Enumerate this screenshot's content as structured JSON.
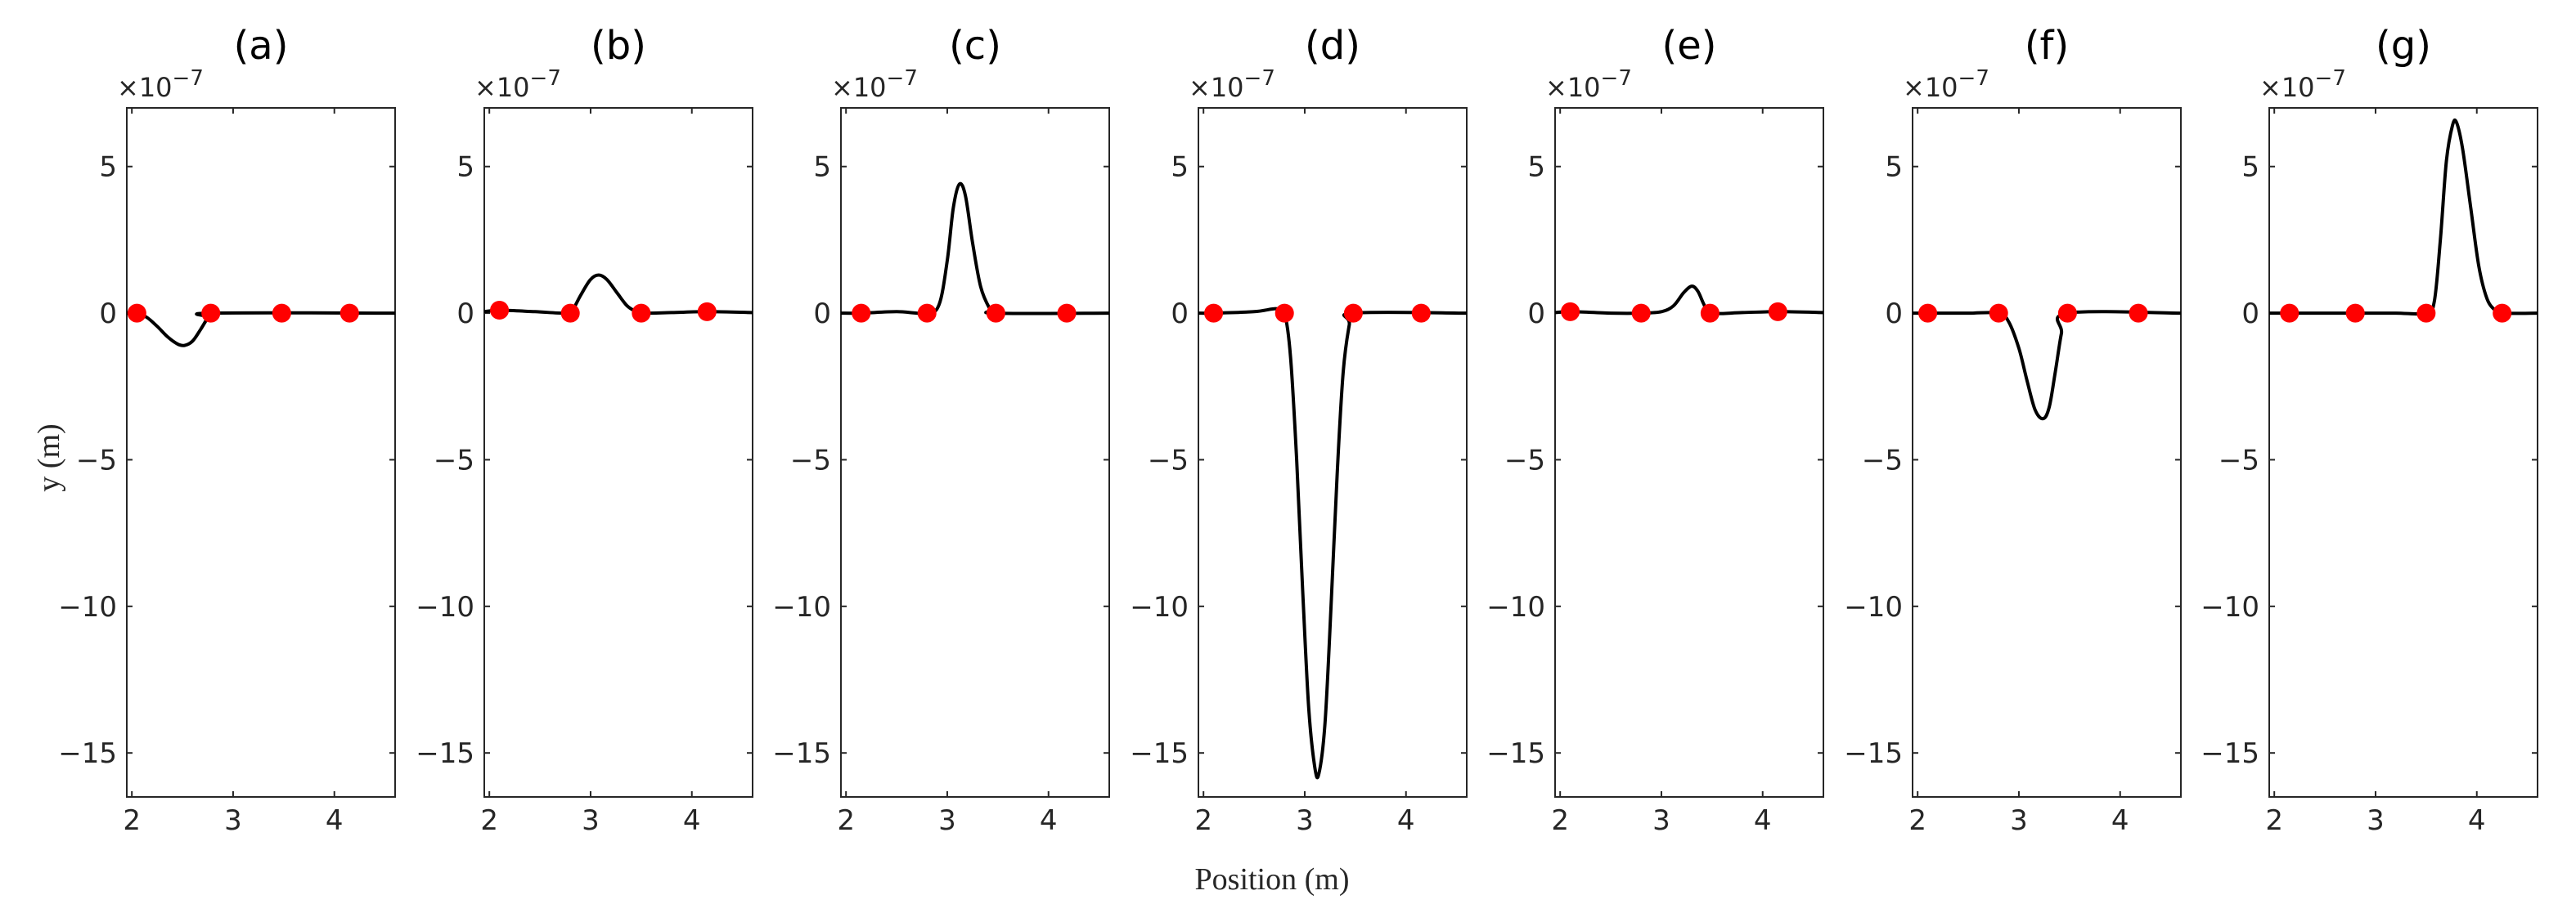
{
  "chart_data": {
    "type": "line",
    "xlabel": "Position (m)",
    "ylabel": "y (m)",
    "y_scale_label": "×10",
    "y_scale_exponent": "−7",
    "xlim": [
      1.95,
      4.6
    ],
    "ylim": [
      -16.5,
      7
    ],
    "x_ticks": [
      2,
      3,
      4
    ],
    "x_tick_labels": [
      "2",
      "3",
      "4"
    ],
    "y_ticks": [
      5,
      0,
      -5,
      -10,
      -15
    ],
    "y_tick_labels": [
      "5",
      "0",
      "−5",
      "−10",
      "−15"
    ],
    "marker_color": "#ff0000",
    "line_color": "#000000",
    "panels": [
      {
        "title": "(a)",
        "markers": [
          {
            "x": 2.05,
            "y": 0
          },
          {
            "x": 2.78,
            "y": 0
          },
          {
            "x": 3.48,
            "y": 0
          },
          {
            "x": 4.15,
            "y": 0
          }
        ],
        "curve": [
          [
            1.95,
            0
          ],
          [
            2.05,
            0
          ],
          [
            2.15,
            -0.15
          ],
          [
            2.25,
            -0.45
          ],
          [
            2.35,
            -0.8
          ],
          [
            2.45,
            -1.05
          ],
          [
            2.52,
            -1.1
          ],
          [
            2.6,
            -0.95
          ],
          [
            2.68,
            -0.55
          ],
          [
            2.75,
            -0.15
          ],
          [
            2.78,
            0
          ],
          [
            4.6,
            0
          ]
        ]
      },
      {
        "title": "(b)",
        "markers": [
          {
            "x": 2.1,
            "y": 0.1
          },
          {
            "x": 2.8,
            "y": 0
          },
          {
            "x": 3.5,
            "y": 0
          },
          {
            "x": 4.15,
            "y": 0.05
          }
        ],
        "curve": [
          [
            1.95,
            0.05
          ],
          [
            2.1,
            0.1
          ],
          [
            2.45,
            0.05
          ],
          [
            2.75,
            0
          ],
          [
            2.82,
            0.1
          ],
          [
            2.9,
            0.6
          ],
          [
            3.0,
            1.15
          ],
          [
            3.08,
            1.3
          ],
          [
            3.16,
            1.15
          ],
          [
            3.26,
            0.7
          ],
          [
            3.36,
            0.25
          ],
          [
            3.45,
            0.05
          ],
          [
            3.5,
            0
          ],
          [
            3.8,
            0.02
          ],
          [
            4.15,
            0.05
          ],
          [
            4.6,
            0.02
          ]
        ]
      },
      {
        "title": "(c)",
        "markers": [
          {
            "x": 2.15,
            "y": 0
          },
          {
            "x": 2.8,
            "y": 0
          },
          {
            "x": 3.48,
            "y": 0
          },
          {
            "x": 4.18,
            "y": 0
          }
        ],
        "curve": [
          [
            1.95,
            0
          ],
          [
            2.15,
            0
          ],
          [
            2.5,
            0.05
          ],
          [
            2.8,
            0
          ],
          [
            2.92,
            0.3
          ],
          [
            3.0,
            1.8
          ],
          [
            3.06,
            3.6
          ],
          [
            3.12,
            4.4
          ],
          [
            3.18,
            4.0
          ],
          [
            3.25,
            2.4
          ],
          [
            3.33,
            0.9
          ],
          [
            3.42,
            0.15
          ],
          [
            3.48,
            0
          ],
          [
            4.6,
            0
          ]
        ]
      },
      {
        "title": "(d)",
        "markers": [
          {
            "x": 2.1,
            "y": 0
          },
          {
            "x": 2.8,
            "y": 0
          },
          {
            "x": 3.48,
            "y": 0
          },
          {
            "x": 4.15,
            "y": 0
          }
        ],
        "curve": [
          [
            1.95,
            0
          ],
          [
            2.1,
            0
          ],
          [
            2.5,
            0.05
          ],
          [
            2.72,
            0.15
          ],
          [
            2.8,
            0
          ],
          [
            2.86,
            -1.5
          ],
          [
            2.92,
            -5.0
          ],
          [
            2.98,
            -9.5
          ],
          [
            3.04,
            -13.5
          ],
          [
            3.1,
            -15.5
          ],
          [
            3.14,
            -15.7
          ],
          [
            3.2,
            -14.0
          ],
          [
            3.26,
            -10.0
          ],
          [
            3.32,
            -5.5
          ],
          [
            3.38,
            -2.0
          ],
          [
            3.44,
            -0.4
          ],
          [
            3.48,
            0
          ],
          [
            4.6,
            0
          ]
        ]
      },
      {
        "title": "(e)",
        "markers": [
          {
            "x": 2.1,
            "y": 0.05
          },
          {
            "x": 2.8,
            "y": 0
          },
          {
            "x": 3.48,
            "y": 0
          },
          {
            "x": 4.15,
            "y": 0.05
          }
        ],
        "curve": [
          [
            1.95,
            0.02
          ],
          [
            2.1,
            0.05
          ],
          [
            2.5,
            0
          ],
          [
            2.8,
            0
          ],
          [
            3.0,
            0.05
          ],
          [
            3.12,
            0.25
          ],
          [
            3.22,
            0.7
          ],
          [
            3.3,
            0.92
          ],
          [
            3.36,
            0.75
          ],
          [
            3.42,
            0.3
          ],
          [
            3.48,
            0
          ],
          [
            3.8,
            0.02
          ],
          [
            4.15,
            0.05
          ],
          [
            4.6,
            0.02
          ]
        ]
      },
      {
        "title": "(f)",
        "markers": [
          {
            "x": 2.1,
            "y": 0
          },
          {
            "x": 2.8,
            "y": 0
          },
          {
            "x": 3.48,
            "y": 0
          },
          {
            "x": 4.18,
            "y": 0
          }
        ],
        "curve": [
          [
            1.95,
            0
          ],
          [
            2.1,
            0
          ],
          [
            2.5,
            0
          ],
          [
            2.8,
            0
          ],
          [
            2.9,
            -0.3
          ],
          [
            3.0,
            -1.2
          ],
          [
            3.08,
            -2.3
          ],
          [
            3.16,
            -3.3
          ],
          [
            3.24,
            -3.6
          ],
          [
            3.3,
            -3.2
          ],
          [
            3.36,
            -2.0
          ],
          [
            3.42,
            -0.7
          ],
          [
            3.48,
            0
          ],
          [
            4.6,
            0
          ]
        ]
      },
      {
        "title": "(g)",
        "markers": [
          {
            "x": 2.15,
            "y": 0
          },
          {
            "x": 2.8,
            "y": 0
          },
          {
            "x": 3.5,
            "y": 0
          },
          {
            "x": 4.25,
            "y": 0
          }
        ],
        "curve": [
          [
            1.95,
            0
          ],
          [
            2.15,
            0
          ],
          [
            2.5,
            0
          ],
          [
            2.8,
            0
          ],
          [
            3.2,
            0
          ],
          [
            3.5,
            0
          ],
          [
            3.58,
            0.4
          ],
          [
            3.64,
            2.5
          ],
          [
            3.7,
            5.2
          ],
          [
            3.76,
            6.4
          ],
          [
            3.8,
            6.5
          ],
          [
            3.86,
            5.6
          ],
          [
            3.94,
            3.6
          ],
          [
            4.02,
            1.6
          ],
          [
            4.1,
            0.5
          ],
          [
            4.18,
            0.1
          ],
          [
            4.25,
            0
          ],
          [
            4.6,
            0
          ]
        ]
      }
    ]
  }
}
